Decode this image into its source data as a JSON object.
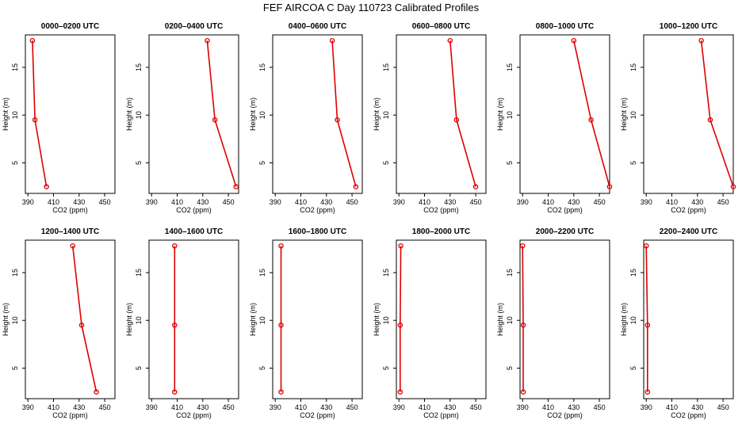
{
  "figure_title": "FEF AIRCOA C  Day 110723  Calibrated Profiles",
  "colors": {
    "series": "#dd0000",
    "axes": "#000000"
  },
  "chart_data": {
    "type": "line",
    "xlabel": "CO2 (ppm)",
    "ylabel": "Height (m)",
    "xlim": [
      388,
      458
    ],
    "ylim": [
      1.8,
      18.4
    ],
    "xticks": [
      390,
      410,
      430,
      450
    ],
    "yticks": [
      5,
      10,
      15
    ],
    "heights": [
      17.8,
      9.5,
      2.5
    ],
    "panels": [
      {
        "title": "0000–0200 UTC",
        "co2": [
          393.5,
          395.5,
          404.5
        ]
      },
      {
        "title": "0200–0400 UTC",
        "co2": [
          433.5,
          439.5,
          456.0
        ]
      },
      {
        "title": "0400–0600 UTC",
        "co2": [
          434.5,
          438.5,
          453.0
        ]
      },
      {
        "title": "0600–0800 UTC",
        "co2": [
          430.0,
          435.0,
          450.0
        ]
      },
      {
        "title": "0800–1000 UTC",
        "co2": [
          430.0,
          443.5,
          458.0
        ]
      },
      {
        "title": "1000–1200 UTC",
        "co2": [
          433.0,
          440.0,
          458.0
        ]
      },
      {
        "title": "1200–1400 UTC",
        "co2": [
          425.0,
          432.0,
          443.5
        ]
      },
      {
        "title": "1400–1600 UTC",
        "co2": [
          408.0,
          408.0,
          408.0
        ]
      },
      {
        "title": "1600–1800 UTC",
        "co2": [
          394.5,
          394.5,
          394.5
        ]
      },
      {
        "title": "1800–2000 UTC",
        "co2": [
          391.5,
          391.0,
          391.0
        ]
      },
      {
        "title": "2000–2200 UTC",
        "co2": [
          390.0,
          390.5,
          390.5
        ]
      },
      {
        "title": "2200–2400 UTC",
        "co2": [
          390.0,
          391.0,
          391.0
        ]
      }
    ]
  }
}
